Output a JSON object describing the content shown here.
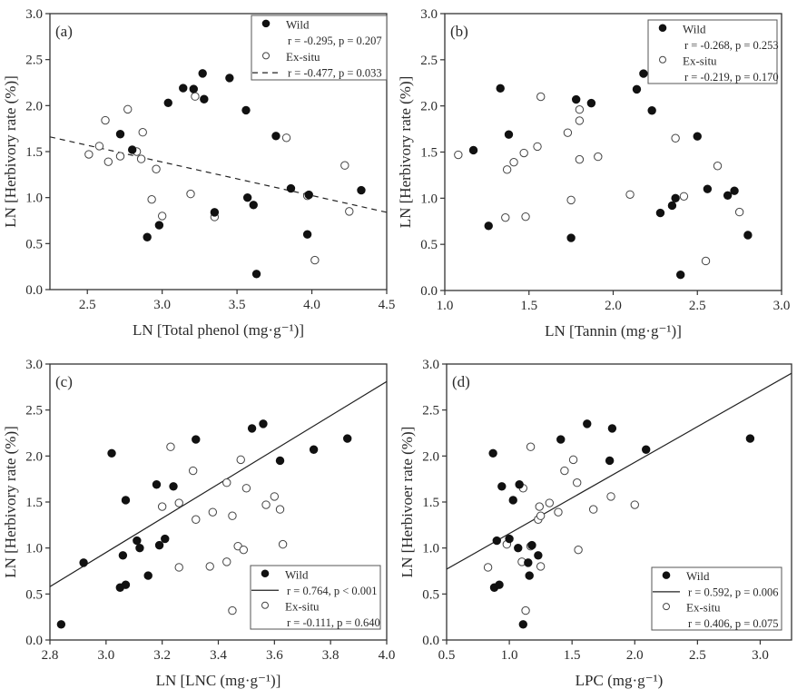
{
  "chart_data": [
    {
      "type": "scatter",
      "panel_label": "(a)",
      "title": "",
      "xlabel": "LN [Total phenol (mg·g⁻¹)]",
      "ylabel": "LN [Herbivory rate (%)]",
      "xlim": [
        2.25,
        4.5
      ],
      "ylim": [
        0.0,
        3.0
      ],
      "xticks": [
        "2.5",
        "3.0",
        "3.5",
        "4.0",
        "4.5"
      ],
      "xtick_values": [
        2.5,
        3.0,
        3.5,
        4.0,
        4.5
      ],
      "yticks": [
        "0.0",
        "0.5",
        "1.0",
        "1.5",
        "2.0",
        "2.5",
        "3.0"
      ],
      "ytick_values": [
        0.0,
        0.5,
        1.0,
        1.5,
        2.0,
        2.5,
        3.0
      ],
      "grid": false,
      "legend_position": "top-right",
      "series": [
        {
          "name": "Wild",
          "marker": "filled-circle",
          "stat": "r = -0.295, p = 0.207",
          "fit_line": null,
          "points": [
            [
              2.72,
              1.69
            ],
            [
              2.8,
              1.52
            ],
            [
              2.9,
              0.57
            ],
            [
              2.98,
              0.7
            ],
            [
              3.04,
              2.03
            ],
            [
              3.14,
              2.19
            ],
            [
              3.21,
              2.18
            ],
            [
              3.27,
              2.35
            ],
            [
              3.28,
              2.07
            ],
            [
              3.35,
              0.84
            ],
            [
              3.45,
              2.3
            ],
            [
              3.56,
              1.95
            ],
            [
              3.57,
              1.0
            ],
            [
              3.61,
              0.92
            ],
            [
              3.63,
              0.17
            ],
            [
              3.76,
              1.67
            ],
            [
              3.86,
              1.1
            ],
            [
              3.97,
              0.6
            ],
            [
              3.98,
              1.03
            ],
            [
              4.33,
              1.08
            ]
          ]
        },
        {
          "name": "Ex-situ",
          "marker": "open-circle",
          "stat": "r = -0.477, p = 0.033",
          "fit_line": {
            "style": "dashed",
            "from": [
              2.25,
              1.66
            ],
            "to": [
              4.5,
              0.84
            ]
          },
          "points": [
            [
              2.51,
              1.47
            ],
            [
              2.58,
              1.56
            ],
            [
              2.62,
              1.84
            ],
            [
              2.64,
              1.39
            ],
            [
              2.72,
              1.45
            ],
            [
              2.77,
              1.96
            ],
            [
              2.83,
              1.5
            ],
            [
              2.86,
              1.42
            ],
            [
              2.87,
              1.71
            ],
            [
              2.93,
              0.98
            ],
            [
              2.96,
              1.31
            ],
            [
              3.0,
              0.8
            ],
            [
              3.19,
              1.04
            ],
            [
              3.22,
              2.1
            ],
            [
              3.35,
              0.79
            ],
            [
              3.83,
              1.65
            ],
            [
              3.97,
              1.02
            ],
            [
              4.02,
              0.32
            ],
            [
              4.22,
              1.35
            ],
            [
              4.25,
              0.85
            ]
          ]
        }
      ],
      "legend": [
        {
          "marker": "filled-circle",
          "text": "Wild"
        },
        {
          "marker": "none",
          "text": "r = -0.295, p = 0.207"
        },
        {
          "marker": "open-circle",
          "text": "Ex-situ"
        },
        {
          "marker": "dashed-line",
          "text": "r = -0.477, p = 0.033"
        }
      ]
    },
    {
      "type": "scatter",
      "panel_label": "(b)",
      "title": "",
      "xlabel": "LN [Tannin (mg·g⁻¹)]",
      "ylabel": "LN [Herbivory rate (%)]",
      "xlim": [
        1.0,
        3.0
      ],
      "ylim": [
        0.0,
        3.0
      ],
      "xticks": [
        "1.0",
        "1.5",
        "2.0",
        "2.5",
        "3.0"
      ],
      "xtick_values": [
        1.0,
        1.5,
        2.0,
        2.5,
        3.0
      ],
      "yticks": [
        "0.0",
        "0.5",
        "1.0",
        "1.5",
        "2.0",
        "2.5",
        "3.0"
      ],
      "ytick_values": [
        0.0,
        0.5,
        1.0,
        1.5,
        2.0,
        2.5,
        3.0
      ],
      "grid": false,
      "legend_position": "top-right",
      "series": [
        {
          "name": "Wild",
          "marker": "filled-circle",
          "stat": "r = -0.268, p = 0.253",
          "fit_line": null,
          "points": [
            [
              1.17,
              1.52
            ],
            [
              1.26,
              0.7
            ],
            [
              1.33,
              2.19
            ],
            [
              1.38,
              1.69
            ],
            [
              1.75,
              0.57
            ],
            [
              1.78,
              2.07
            ],
            [
              1.87,
              2.03
            ],
            [
              2.14,
              2.18
            ],
            [
              2.18,
              2.35
            ],
            [
              2.23,
              1.95
            ],
            [
              2.28,
              0.84
            ],
            [
              2.35,
              0.92
            ],
            [
              2.37,
              1.0
            ],
            [
              2.4,
              0.17
            ],
            [
              2.5,
              1.67
            ],
            [
              2.56,
              1.1
            ],
            [
              2.68,
              1.03
            ],
            [
              2.72,
              1.08
            ],
            [
              2.8,
              0.6
            ]
          ]
        },
        {
          "name": "Ex-situ",
          "marker": "open-circle",
          "stat": "r = -0.219, p = 0.170",
          "fit_line": null,
          "points": [
            [
              1.08,
              1.47
            ],
            [
              1.36,
              0.79
            ],
            [
              1.37,
              1.31
            ],
            [
              1.41,
              1.39
            ],
            [
              1.47,
              1.49
            ],
            [
              1.48,
              0.8
            ],
            [
              1.55,
              1.56
            ],
            [
              1.57,
              2.1
            ],
            [
              1.73,
              1.71
            ],
            [
              1.75,
              0.98
            ],
            [
              1.8,
              1.96
            ],
            [
              1.8,
              1.84
            ],
            [
              1.8,
              1.42
            ],
            [
              1.91,
              1.45
            ],
            [
              2.1,
              1.04
            ],
            [
              2.37,
              1.65
            ],
            [
              2.42,
              1.02
            ],
            [
              2.55,
              0.32
            ],
            [
              2.62,
              1.35
            ],
            [
              2.75,
              0.85
            ]
          ]
        }
      ],
      "legend": [
        {
          "marker": "filled-circle",
          "text": "Wild"
        },
        {
          "marker": "none",
          "text": "r = -0.268, p = 0.253"
        },
        {
          "marker": "open-circle",
          "text": "Ex-situ"
        },
        {
          "marker": "none",
          "text": "r = -0.219, p = 0.170"
        }
      ]
    },
    {
      "type": "scatter",
      "panel_label": "(c)",
      "title": "",
      "xlabel": "LN [LNC (mg·g⁻¹)]",
      "ylabel": "LN [Herbivory rate (%)]",
      "xlim": [
        2.8,
        4.0
      ],
      "ylim": [
        0.0,
        3.0
      ],
      "xticks": [
        "2.8",
        "3.0",
        "3.2",
        "3.4",
        "3.6",
        "3.8",
        "4.0"
      ],
      "xtick_values": [
        2.8,
        3.0,
        3.2,
        3.4,
        3.6,
        3.8,
        4.0
      ],
      "yticks": [
        "0.0",
        "0.5",
        "1.0",
        "1.5",
        "2.0",
        "2.5",
        "3.0"
      ],
      "ytick_values": [
        0.0,
        0.5,
        1.0,
        1.5,
        2.0,
        2.5,
        3.0
      ],
      "grid": false,
      "legend_position": "bottom-right",
      "series": [
        {
          "name": "Wild",
          "marker": "filled-circle",
          "stat": "r = 0.764, p < 0.001",
          "fit_line": {
            "style": "solid",
            "from": [
              2.8,
              0.58
            ],
            "to": [
              4.0,
              2.81
            ]
          },
          "points": [
            [
              2.84,
              0.17
            ],
            [
              2.92,
              0.84
            ],
            [
              3.02,
              2.03
            ],
            [
              3.05,
              0.57
            ],
            [
              3.06,
              0.92
            ],
            [
              3.07,
              0.6
            ],
            [
              3.07,
              1.52
            ],
            [
              3.11,
              1.08
            ],
            [
              3.12,
              1.0
            ],
            [
              3.15,
              0.7
            ],
            [
              3.18,
              1.69
            ],
            [
              3.19,
              1.03
            ],
            [
              3.21,
              1.1
            ],
            [
              3.24,
              1.67
            ],
            [
              3.32,
              2.18
            ],
            [
              3.52,
              2.3
            ],
            [
              3.56,
              2.35
            ],
            [
              3.62,
              1.95
            ],
            [
              3.74,
              2.07
            ],
            [
              3.86,
              2.19
            ]
          ]
        },
        {
          "name": "Ex-situ",
          "marker": "open-circle",
          "stat": "r = -0.111, p = 0.640",
          "fit_line": null,
          "points": [
            [
              3.2,
              1.45
            ],
            [
              3.23,
              2.1
            ],
            [
              3.26,
              0.79
            ],
            [
              3.26,
              1.49
            ],
            [
              3.31,
              1.84
            ],
            [
              3.32,
              1.31
            ],
            [
              3.37,
              0.8
            ],
            [
              3.38,
              1.39
            ],
            [
              3.43,
              0.85
            ],
            [
              3.43,
              1.71
            ],
            [
              3.45,
              0.32
            ],
            [
              3.45,
              1.35
            ],
            [
              3.47,
              1.02
            ],
            [
              3.48,
              1.96
            ],
            [
              3.49,
              0.98
            ],
            [
              3.5,
              1.65
            ],
            [
              3.57,
              1.47
            ],
            [
              3.6,
              1.56
            ],
            [
              3.62,
              1.42
            ],
            [
              3.63,
              1.04
            ]
          ]
        }
      ],
      "legend": [
        {
          "marker": "filled-circle",
          "text": "Wild"
        },
        {
          "marker": "solid-line",
          "text": "r = 0.764, p < 0.001"
        },
        {
          "marker": "open-circle",
          "text": "Ex-situ"
        },
        {
          "marker": "none",
          "text": "r = -0.111, p = 0.640"
        }
      ]
    },
    {
      "type": "scatter",
      "panel_label": "(d)",
      "title": "",
      "xlabel": "LPC (mg·g⁻¹)",
      "ylabel": "LN [Herbivoer rate (%)]",
      "xlim": [
        0.5,
        3.25
      ],
      "ylim": [
        0.0,
        3.0
      ],
      "xticks": [
        "0.5",
        "1.0",
        "1.5",
        "2.0",
        "2.5",
        "3.0"
      ],
      "xtick_values": [
        0.5,
        1.0,
        1.5,
        2.0,
        2.5,
        3.0
      ],
      "yticks": [
        "0.0",
        "0.5",
        "1.0",
        "1.5",
        "2.0",
        "2.5",
        "3.0"
      ],
      "ytick_values": [
        0.0,
        0.5,
        1.0,
        1.5,
        2.0,
        2.5,
        3.0
      ],
      "grid": false,
      "legend_position": "bottom-right",
      "series": [
        {
          "name": "Wild",
          "marker": "filled-circle",
          "stat": "r = 0.592, p = 0.006",
          "fit_line": {
            "style": "solid",
            "from": [
              0.5,
              0.77
            ],
            "to": [
              3.25,
              2.9
            ]
          },
          "points": [
            [
              0.87,
              2.03
            ],
            [
              0.88,
              0.57
            ],
            [
              0.9,
              1.08
            ],
            [
              0.92,
              0.6
            ],
            [
              0.94,
              1.67
            ],
            [
              1.0,
              1.1
            ],
            [
              1.03,
              1.52
            ],
            [
              1.07,
              1.0
            ],
            [
              1.08,
              1.69
            ],
            [
              1.11,
              0.17
            ],
            [
              1.15,
              0.84
            ],
            [
              1.16,
              0.7
            ],
            [
              1.23,
              0.92
            ],
            [
              1.41,
              2.18
            ],
            [
              1.62,
              2.35
            ],
            [
              1.8,
              1.95
            ],
            [
              1.82,
              2.3
            ],
            [
              2.09,
              2.07
            ],
            [
              2.92,
              2.19
            ],
            [
              1.18,
              1.03
            ]
          ]
        },
        {
          "name": "Ex-situ",
          "marker": "open-circle",
          "stat": "r = 0.406, p = 0.075",
          "fit_line": null,
          "points": [
            [
              0.83,
              0.79
            ],
            [
              0.98,
              1.04
            ],
            [
              1.1,
              0.85
            ],
            [
              1.11,
              1.65
            ],
            [
              1.13,
              0.32
            ],
            [
              1.17,
              2.1
            ],
            [
              1.17,
              1.02
            ],
            [
              1.23,
              1.31
            ],
            [
              1.24,
              1.45
            ],
            [
              1.25,
              1.35
            ],
            [
              1.25,
              0.8
            ],
            [
              1.32,
              1.49
            ],
            [
              1.39,
              1.39
            ],
            [
              1.44,
              1.84
            ],
            [
              1.51,
              1.96
            ],
            [
              1.54,
              1.71
            ],
            [
              1.55,
              0.98
            ],
            [
              1.67,
              1.42
            ],
            [
              1.81,
              1.56
            ],
            [
              2.0,
              1.47
            ]
          ]
        }
      ],
      "legend": [
        {
          "marker": "filled-circle",
          "text": "Wild"
        },
        {
          "marker": "solid-line",
          "text": "r = 0.592, p = 0.006"
        },
        {
          "marker": "open-circle",
          "text": "Ex-situ"
        },
        {
          "marker": "none",
          "text": "r = 0.406, p = 0.075"
        }
      ]
    }
  ]
}
